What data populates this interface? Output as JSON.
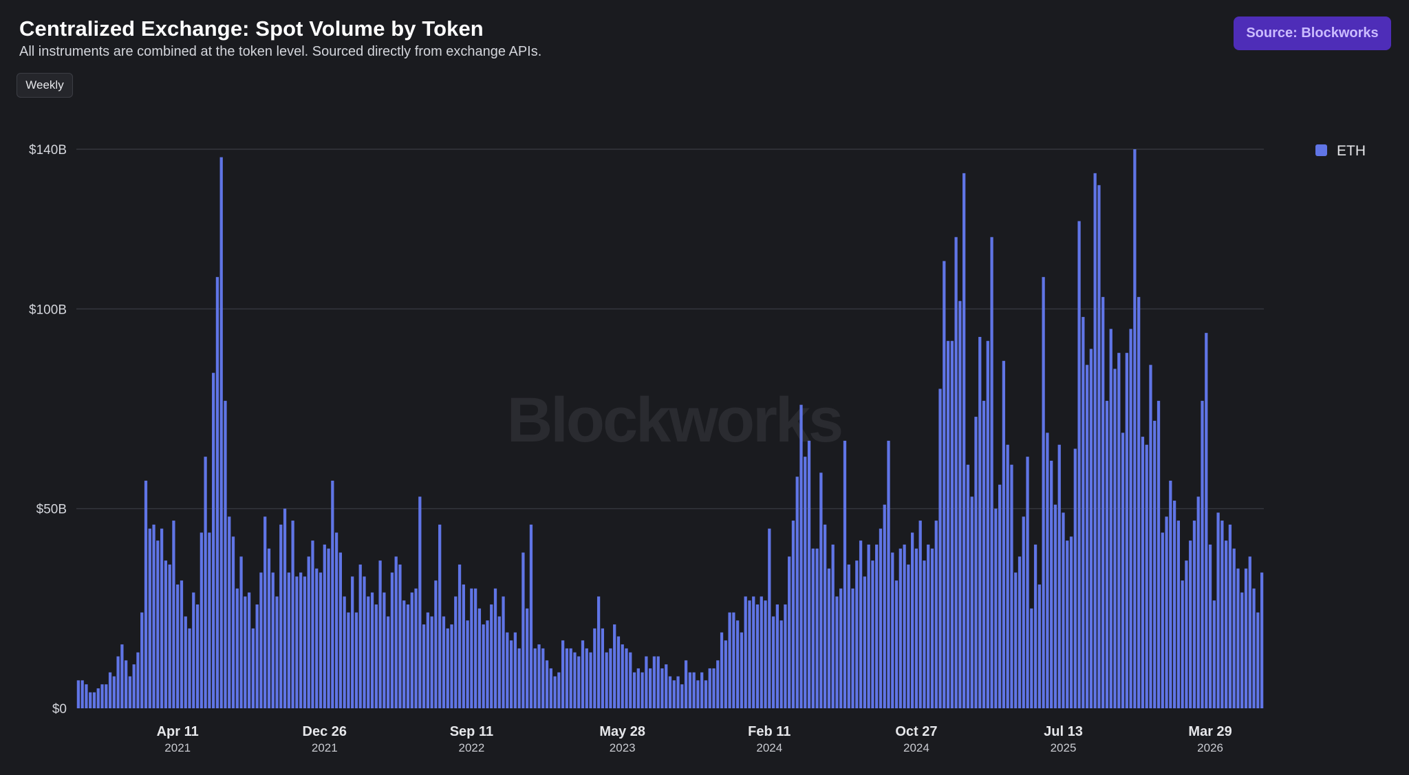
{
  "header": {
    "title": "Centralized Exchange: Spot Volume by Token",
    "subtitle": "All instruments are combined at the token level. Sourced directly from exchange APIs.",
    "frequency_button": "Weekly",
    "source_button": "Source: Blockworks"
  },
  "watermark": "Blockworks",
  "colors": {
    "background": "#1a1b1f",
    "bar": "#6075e6",
    "grid": "#34363d",
    "source_button_bg": "#4e2db8"
  },
  "chart_data": {
    "type": "bar",
    "title": "Centralized Exchange: Spot Volume by Token",
    "xlabel": "",
    "ylabel": "",
    "ylim": [
      0,
      140
    ],
    "y_ticks": [
      {
        "value": 0,
        "label": "$0"
      },
      {
        "value": 50,
        "label": "$50B"
      },
      {
        "value": 100,
        "label": "$100B"
      },
      {
        "value": 140,
        "label": "$140B"
      }
    ],
    "x_ticks": [
      {
        "index": 25,
        "label": "Apr 11",
        "year": "2021"
      },
      {
        "index": 62,
        "label": "Dec 26",
        "year": "2021"
      },
      {
        "index": 99,
        "label": "Sep 11",
        "year": "2022"
      },
      {
        "index": 137,
        "label": "May 28",
        "year": "2023"
      },
      {
        "index": 174,
        "label": "Feb 11",
        "year": "2024"
      },
      {
        "index": 211,
        "label": "Oct 27",
        "year": "2024"
      },
      {
        "index": 248,
        "label": "Jul 13",
        "year": "2025"
      },
      {
        "index": 285,
        "label": "Mar 29",
        "year": "2026"
      }
    ],
    "legend": {
      "position": "top-right",
      "entries": [
        "ETH"
      ]
    },
    "grid": true,
    "series": [
      {
        "name": "ETH",
        "unit": "B",
        "values": [
          7,
          7,
          6,
          4,
          4,
          5,
          6,
          6,
          9,
          8,
          13,
          16,
          12,
          8,
          11,
          14,
          24,
          57,
          45,
          46,
          42,
          45,
          37,
          36,
          47,
          31,
          32,
          23,
          20,
          29,
          26,
          44,
          63,
          44,
          84,
          108,
          138,
          77,
          48,
          43,
          30,
          38,
          28,
          29,
          20,
          26,
          34,
          48,
          40,
          34,
          28,
          46,
          50,
          34,
          47,
          33,
          34,
          33,
          38,
          42,
          35,
          34,
          41,
          40,
          57,
          44,
          39,
          28,
          24,
          33,
          24,
          36,
          33,
          28,
          29,
          26,
          37,
          29,
          23,
          34,
          38,
          36,
          27,
          26,
          29,
          30,
          53,
          21,
          24,
          23,
          32,
          46,
          23,
          20,
          21,
          28,
          36,
          31,
          22,
          30,
          30,
          25,
          21,
          22,
          26,
          30,
          23,
          28,
          19,
          17,
          19,
          15,
          39,
          25,
          46,
          15,
          16,
          15,
          12,
          10,
          8,
          9,
          17,
          15,
          15,
          14,
          13,
          17,
          15,
          14,
          20,
          28,
          20,
          14,
          15,
          21,
          18,
          16,
          15,
          14,
          9,
          10,
          9,
          13,
          10,
          13,
          13,
          10,
          11,
          8,
          7,
          8,
          6,
          12,
          9,
          9,
          7,
          9,
          7,
          10,
          10,
          12,
          19,
          17,
          24,
          24,
          22,
          19,
          28,
          27,
          28,
          26,
          28,
          27,
          45,
          23,
          26,
          22,
          26,
          38,
          47,
          58,
          76,
          63,
          67,
          40,
          40,
          59,
          46,
          35,
          41,
          28,
          30,
          67,
          36,
          30,
          37,
          42,
          33,
          41,
          37,
          41,
          45,
          51,
          67,
          39,
          32,
          40,
          41,
          36,
          44,
          40,
          47,
          37,
          41,
          40,
          47,
          80,
          112,
          92,
          92,
          118,
          102,
          134,
          61,
          53,
          73,
          93,
          77,
          92,
          118,
          50,
          56,
          87,
          66,
          61,
          34,
          38,
          48,
          63,
          25,
          41,
          31,
          108,
          69,
          62,
          51,
          66,
          49,
          42,
          43,
          65,
          122,
          98,
          86,
          90,
          134,
          131,
          103,
          77,
          95,
          85,
          89,
          69,
          89,
          95,
          140,
          103,
          68,
          66,
          86,
          72,
          77,
          44,
          48,
          57,
          52,
          47,
          32,
          37,
          42,
          47,
          53,
          77,
          94,
          41,
          27,
          49,
          47,
          42,
          46,
          40,
          35,
          29,
          35,
          38,
          30,
          24,
          34
        ]
      }
    ]
  }
}
